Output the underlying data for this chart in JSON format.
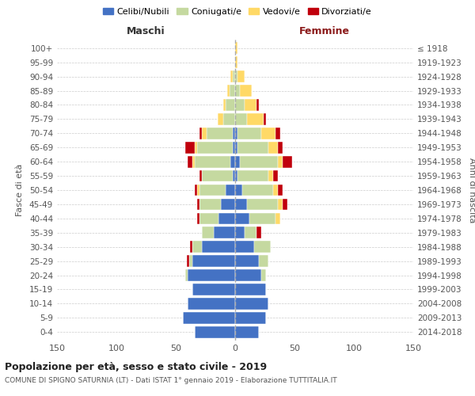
{
  "age_groups": [
    "100+",
    "95-99",
    "90-94",
    "85-89",
    "80-84",
    "75-79",
    "70-74",
    "65-69",
    "60-64",
    "55-59",
    "50-54",
    "45-49",
    "40-44",
    "35-39",
    "30-34",
    "25-29",
    "20-24",
    "15-19",
    "10-14",
    "5-9",
    "0-4"
  ],
  "birth_years": [
    "≤ 1918",
    "1919-1923",
    "1924-1928",
    "1929-1933",
    "1934-1938",
    "1939-1943",
    "1944-1948",
    "1949-1953",
    "1954-1958",
    "1959-1963",
    "1964-1968",
    "1969-1973",
    "1974-1978",
    "1979-1983",
    "1984-1988",
    "1989-1993",
    "1994-1998",
    "1999-2003",
    "2004-2008",
    "2009-2013",
    "2014-2018"
  ],
  "maschi": {
    "celibi": [
      0,
      0,
      0,
      0,
      0,
      0,
      2,
      2,
      4,
      2,
      8,
      12,
      14,
      18,
      28,
      36,
      40,
      36,
      40,
      44,
      34
    ],
    "coniugati": [
      0,
      0,
      2,
      5,
      8,
      10,
      22,
      30,
      30,
      26,
      22,
      18,
      16,
      10,
      8,
      3,
      2,
      0,
      0,
      0,
      0
    ],
    "vedovi": [
      0,
      0,
      2,
      2,
      2,
      5,
      4,
      2,
      2,
      0,
      2,
      0,
      0,
      0,
      0,
      0,
      0,
      0,
      0,
      0,
      0
    ],
    "divorziati": [
      0,
      0,
      0,
      0,
      0,
      0,
      2,
      8,
      4,
      2,
      2,
      2,
      2,
      0,
      2,
      2,
      0,
      0,
      0,
      0,
      0
    ]
  },
  "femmine": {
    "nubili": [
      0,
      0,
      0,
      0,
      0,
      0,
      2,
      2,
      4,
      2,
      6,
      10,
      12,
      8,
      16,
      20,
      22,
      26,
      28,
      26,
      20
    ],
    "coniugate": [
      0,
      0,
      2,
      4,
      8,
      10,
      20,
      26,
      32,
      26,
      26,
      26,
      22,
      10,
      14,
      8,
      4,
      0,
      0,
      0,
      0
    ],
    "vedove": [
      2,
      2,
      6,
      10,
      10,
      14,
      12,
      8,
      4,
      4,
      4,
      4,
      4,
      0,
      0,
      0,
      0,
      0,
      0,
      0,
      0
    ],
    "divorziate": [
      0,
      0,
      0,
      0,
      2,
      2,
      4,
      4,
      8,
      4,
      4,
      4,
      0,
      4,
      0,
      0,
      0,
      0,
      0,
      0,
      0
    ]
  },
  "colors": {
    "celibi": "#4472c4",
    "coniugati": "#c5d9a0",
    "vedovi": "#ffd966",
    "divorziati": "#c0000c"
  },
  "legend_labels": [
    "Celibi/Nubili",
    "Coniugati/e",
    "Vedovi/e",
    "Divorziati/e"
  ],
  "title": "Popolazione per età, sesso e stato civile - 2019",
  "subtitle": "COMUNE DI SPIGNO SATURNIA (LT) - Dati ISTAT 1° gennaio 2019 - Elaborazione TUTTITALIA.IT",
  "ylabel_left": "Fasce di età",
  "ylabel_right": "Anni di nascita",
  "xlabel_maschi": "Maschi",
  "xlabel_femmine": "Femmine",
  "xlim": 150,
  "bg_color": "#ffffff",
  "grid_color": "#cccccc"
}
